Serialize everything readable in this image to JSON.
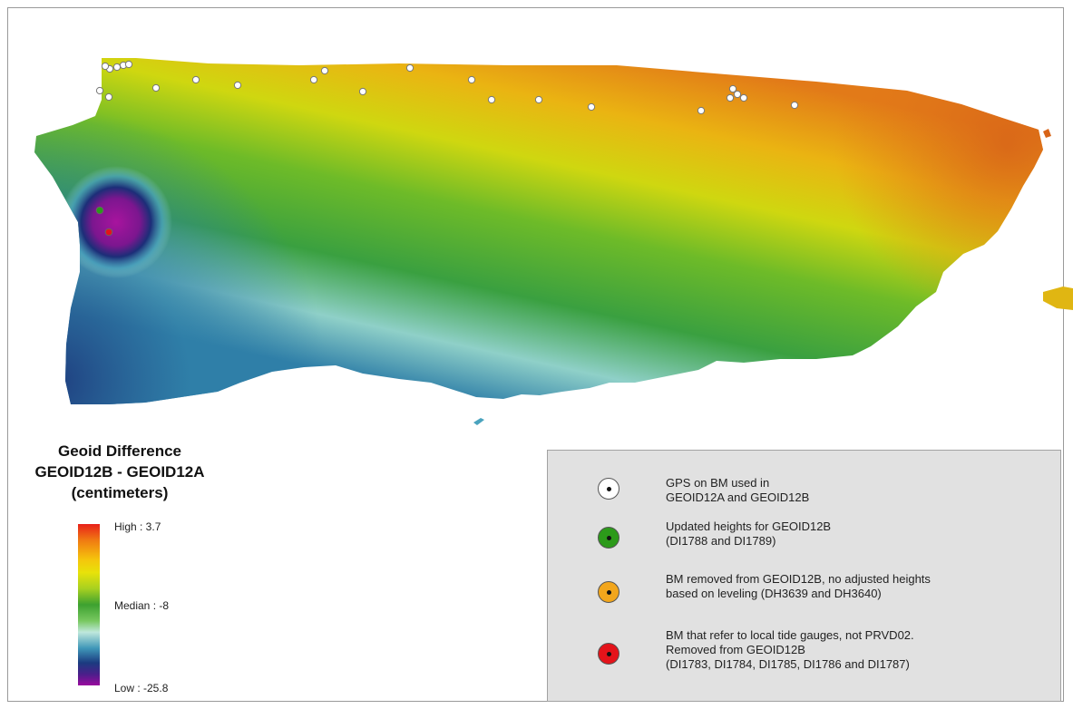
{
  "legend_ramp": {
    "title_lines": [
      "Geoid Difference",
      "GEOID12B - GEOID12A",
      "(centimeters)"
    ],
    "high_label": "High : 3.7",
    "median_label": "Median : -8",
    "low_label": "Low : -25.8",
    "ramp_colors": [
      "#e8201a",
      "#f5c50c",
      "#3da130",
      "#bfe8dc",
      "#1b3b80",
      "#9a0a9e"
    ]
  },
  "legend_symbols": [
    {
      "color": "#ffffff",
      "lines": [
        "GPS on BM used in",
        "GEOID12A and GEOID12B"
      ]
    },
    {
      "color": "#2c9a1a",
      "lines": [
        "Updated heights for GEOID12B",
        "(DI1788 and DI1789)"
      ]
    },
    {
      "color": "#f2a61c",
      "lines": [
        "BM removed from GEOID12B, no adjusted heights",
        "based on leveling (DH3639 and DH3640)"
      ]
    },
    {
      "color": "#e4131a",
      "lines": [
        "BM that refer to local tide gauges, not PRVD02.",
        "Removed from GEOID12B",
        "(DI1783, DI1784, DI1785, DI1786 and DI1787)"
      ]
    }
  ],
  "map": {
    "description_icon": "puerto-rico-map",
    "gps_points_count": 26,
    "colors": {
      "high": "#e8201a",
      "median": "#3da130",
      "low": "#9a0a9e"
    }
  }
}
